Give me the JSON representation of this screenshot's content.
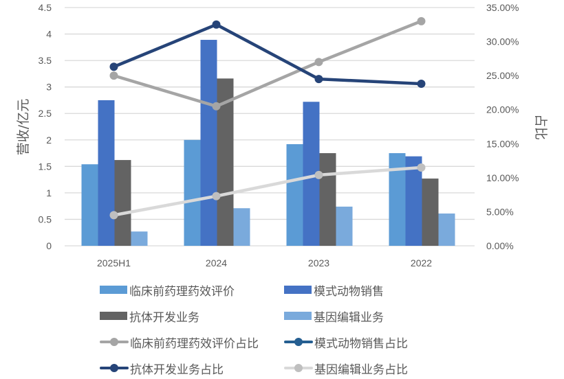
{
  "chart_data": {
    "type": "bar+line",
    "categories": [
      "2025H1",
      "2024",
      "2023",
      "2022"
    ],
    "title": "",
    "ylabel": "营收/亿元",
    "y2label": "占比",
    "ylim": [
      0,
      4.5
    ],
    "y2lim": [
      0,
      0.35
    ],
    "yticks": [
      "0",
      "0.5",
      "1",
      "1.5",
      "2",
      "2.5",
      "3",
      "3.5",
      "4",
      "4.5"
    ],
    "y2ticks": [
      "0.00%",
      "5.00%",
      "10.00%",
      "15.00%",
      "20.00%",
      "25.00%",
      "30.00%",
      "35.00%"
    ],
    "grid": true,
    "legend_position": "bottom",
    "bar_series": [
      {
        "name": "临床前药理药效评价",
        "color": "#5B9BD5",
        "values": [
          1.54,
          2.0,
          1.92,
          1.75
        ]
      },
      {
        "name": "模式动物销售",
        "color": "#4472C4",
        "values": [
          2.75,
          3.89,
          2.72,
          1.69
        ]
      },
      {
        "name": "抗体开发业务",
        "color": "#636363",
        "values": [
          1.62,
          3.16,
          1.75,
          1.27
        ]
      },
      {
        "name": "基因编辑业务",
        "color": "#7AAADC",
        "values": [
          0.27,
          0.71,
          0.74,
          0.61
        ]
      }
    ],
    "line_series": [
      {
        "name": "临床前药理药效评价占比",
        "color": "#A5A5A5",
        "axis": "right",
        "values": [
          0.25,
          0.205,
          0.27,
          0.33
        ]
      },
      {
        "name": "模式动物销售占比",
        "color": "#255E91",
        "axis": "right",
        "values": [
          null,
          null,
          null,
          null
        ]
      },
      {
        "name": "抗体开发业务占比",
        "color": "#264478",
        "axis": "right",
        "values": [
          0.263,
          0.325,
          0.245,
          0.238
        ]
      },
      {
        "name": "基因编辑业务占比",
        "color": "#D9D9D9",
        "axis": "right",
        "values": [
          0.045,
          0.073,
          0.104,
          0.115
        ]
      }
    ]
  },
  "legend": {
    "items": [
      {
        "label": "临床前药理药效评价",
        "kind": "bar",
        "color": "#5B9BD5"
      },
      {
        "label": "模式动物销售",
        "kind": "bar",
        "color": "#4472C4"
      },
      {
        "label": "抗体开发业务",
        "kind": "bar",
        "color": "#636363"
      },
      {
        "label": "基因编辑业务",
        "kind": "bar",
        "color": "#7AAADC"
      },
      {
        "label": "临床前药理药效评价占比",
        "kind": "line",
        "color": "#A5A5A5"
      },
      {
        "label": "模式动物销售占比",
        "kind": "line",
        "color": "#255E91"
      },
      {
        "label": "抗体开发业务占比",
        "kind": "line",
        "color": "#264478"
      },
      {
        "label": "基因编辑业务占比",
        "kind": "line",
        "color": "#D9D9D9"
      }
    ]
  }
}
